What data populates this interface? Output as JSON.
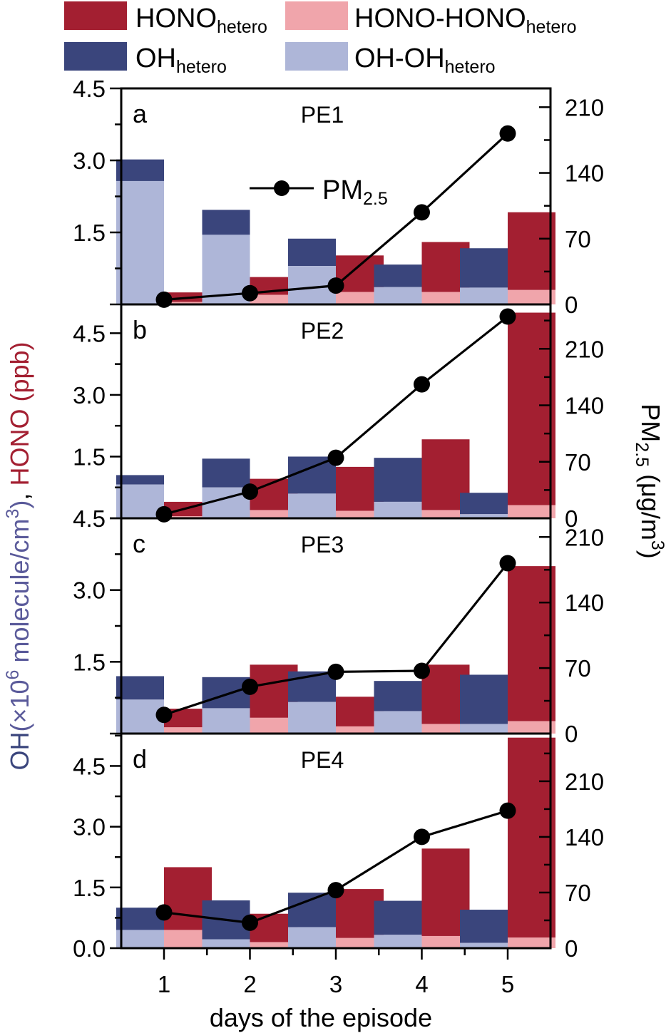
{
  "legend": {
    "hono_hetero": {
      "base": "HONO",
      "sub": "hetero"
    },
    "hono_minus": {
      "base": "HONO-HONO",
      "sub": "hetero"
    },
    "oh_hetero": {
      "base": "OH",
      "sub": "hetero"
    },
    "oh_minus": {
      "base": "OH-OH",
      "sub": "hetero"
    },
    "pm": {
      "base": "PM",
      "sub": "2.5"
    }
  },
  "colors": {
    "oh_hetero": "#3a457c",
    "oh_minus": "#aeb6d8",
    "hono_hetero": "#a31f31",
    "hono_minus": "#f0a5ab",
    "pm": "#000000"
  },
  "axes": {
    "x_title": "days of the episode",
    "y_left_title": {
      "oh": "OH",
      "oh_paren": "(×10",
      "oh_exp": "6",
      "oh_unit": " molecule/cm",
      "oh_unit_exp": "3",
      "oh_close": ")",
      "comma": ", ",
      "hono": "HONO (ppb)"
    },
    "y_right_title": {
      "pm": "PM",
      "pm_sub": "2.5",
      "unit": " (μg/m",
      "unit_exp": "3",
      "close": ")"
    }
  },
  "chart_data": [
    {
      "panel": "a",
      "title": "PE1",
      "type": "bar+line",
      "x": [
        1,
        2,
        3,
        4,
        5
      ],
      "left_ticks": [
        "1.5",
        "3.0",
        "4.5"
      ],
      "right_ticks": [
        "0",
        "70",
        "140",
        "210"
      ],
      "ylim_left": [
        0,
        4.5
      ],
      "ylim_right": [
        0,
        230
      ],
      "oh_total": [
        3.02,
        1.97,
        1.37,
        0.83,
        1.17
      ],
      "oh_minus_hetero": [
        2.57,
        1.45,
        0.8,
        0.36,
        0.35
      ],
      "hono_total": [
        0.25,
        0.57,
        1.02,
        1.3,
        1.92
      ],
      "hono_minus_hetero": [
        0.05,
        0.2,
        0.26,
        0.26,
        0.3
      ],
      "pm25": [
        5,
        12,
        20,
        98,
        182
      ]
    },
    {
      "panel": "b",
      "title": "PE2",
      "type": "bar+line",
      "x": [
        1,
        2,
        3,
        4,
        5
      ],
      "left_ticks": [
        "1.5",
        "3.0",
        "4.5"
      ],
      "right_ticks": [
        "0",
        "70",
        "140",
        "210"
      ],
      "ylim_left": [
        0,
        5.2
      ],
      "ylim_right": [
        0,
        265
      ],
      "oh_total": [
        1.05,
        1.45,
        1.5,
        1.47,
        0.62
      ],
      "oh_minus_hetero": [
        0.82,
        0.75,
        0.6,
        0.4,
        0.1
      ],
      "hono_total": [
        0.4,
        0.96,
        1.25,
        1.92,
        5.0
      ],
      "hono_minus_hetero": [
        0.05,
        0.2,
        0.18,
        0.2,
        0.32
      ],
      "pm25": [
        5,
        33,
        75,
        166,
        250
      ]
    },
    {
      "panel": "c",
      "title": "PE3",
      "type": "bar+line",
      "x": [
        1,
        2,
        3,
        4,
        5
      ],
      "left_ticks": [
        "1.5",
        "3.0",
        "4.5"
      ],
      "right_ticks": [
        "0",
        "70",
        "140",
        "210"
      ],
      "ylim_left": [
        0,
        4.5
      ],
      "ylim_right": [
        0,
        230
      ],
      "oh_total": [
        1.2,
        1.18,
        1.3,
        1.1,
        1.23
      ],
      "oh_minus_hetero": [
        0.71,
        0.53,
        0.66,
        0.47,
        0.2
      ],
      "hono_total": [
        0.52,
        1.44,
        0.77,
        1.44,
        3.5
      ],
      "hono_minus_hetero": [
        0.13,
        0.33,
        0.15,
        0.2,
        0.26
      ],
      "pm25": [
        20,
        50,
        66,
        67,
        182
      ]
    },
    {
      "panel": "d",
      "title": "PE4",
      "type": "bar+line",
      "x": [
        1,
        2,
        3,
        4,
        5
      ],
      "left_ticks": [
        "0.0",
        "1.5",
        "3.0",
        "4.5"
      ],
      "right_ticks": [
        "0",
        "70",
        "140",
        "210"
      ],
      "ylim_left": [
        0,
        5.3
      ],
      "ylim_right": [
        0,
        270
      ],
      "oh_total": [
        1.0,
        1.18,
        1.37,
        1.17,
        0.95
      ],
      "oh_minus_hetero": [
        0.45,
        0.22,
        0.52,
        0.33,
        0.13
      ],
      "hono_total": [
        2.0,
        0.85,
        1.46,
        2.46,
        5.2
      ],
      "hono_minus_hetero": [
        0.45,
        0.15,
        0.25,
        0.3,
        0.26
      ],
      "pm25": [
        45,
        32,
        73,
        140,
        173
      ]
    }
  ]
}
